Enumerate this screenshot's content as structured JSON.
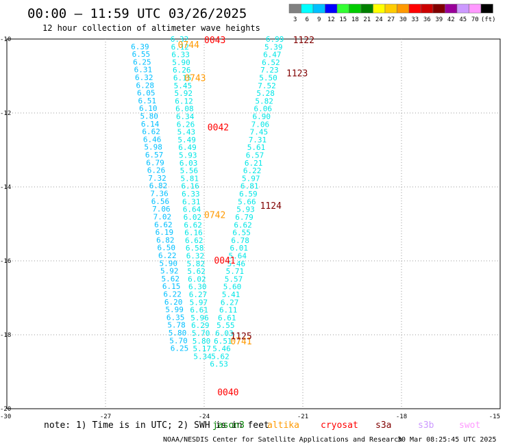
{
  "header": {
    "title": "00:00 – 11:59 UTC 03/26/2025",
    "subtitle": "12 hour collection of altimeter wave heights"
  },
  "legend": {
    "labels": [
      "3",
      "6",
      "9",
      "12",
      "15",
      "18",
      "21",
      "24",
      "27",
      "30",
      "33",
      "36",
      "39",
      "42",
      "45",
      "70",
      "(ft)"
    ],
    "colors": [
      "#808080",
      "#00ffff",
      "#00bfff",
      "#0000ff",
      "#33ff33",
      "#00cc00",
      "#008000",
      "#ffff00",
      "#ffcc00",
      "#ff9900",
      "#ff0000",
      "#cc0000",
      "#800000",
      "#990099",
      "#cc99ff",
      "#ff99ff",
      "#000000"
    ]
  },
  "axes": {
    "y_labels": [
      "-10",
      "-12",
      "-14",
      "-16",
      "-18",
      "-20"
    ],
    "y_values": [
      -10,
      -12,
      -14,
      -16,
      -18,
      -20
    ],
    "x_labels": [
      "-30",
      "-27",
      "-24",
      "-21",
      "-18",
      "-15"
    ],
    "x_values": [
      -30,
      -27,
      -24,
      -21,
      -18,
      -15
    ]
  },
  "note": {
    "text": "note:  1) Time is in UTC; 2) SWH is in feet",
    "sats": [
      {
        "name": "jason3",
        "color": "#008000"
      },
      {
        "name": "altika",
        "color": "#ff9900"
      },
      {
        "name": "cryosat",
        "color": "#ff0000"
      },
      {
        "name": "s3a",
        "color": "#800000"
      },
      {
        "name": "s3b",
        "color": "#cc99ff"
      },
      {
        "name": "swot",
        "color": "#ff99ff"
      }
    ]
  },
  "footer": {
    "credit": "NOAA/NESDIS Center for Satellite Applications and Research",
    "timestamp": "30 Mar 08:25:45 UTC 2025"
  },
  "colors": {
    "cyan": "#00e6e6",
    "blue": "#00bfff",
    "green": "#008000",
    "orange": "#ff9900",
    "red": "#ff0000",
    "maroon": "#800000"
  },
  "track_labels": [
    {
      "text": "0043",
      "lat": -10.02,
      "lon": -24.0,
      "color": "red"
    },
    {
      "text": "0744",
      "lat": -10.15,
      "lon": -24.8,
      "color": "orange"
    },
    {
      "text": "0743",
      "lat": -11.05,
      "lon": -24.6,
      "color": "orange"
    },
    {
      "text": "0042",
      "lat": -12.38,
      "lon": -23.9,
      "color": "red"
    },
    {
      "text": "0742",
      "lat": -14.75,
      "lon": -24.0,
      "color": "orange"
    },
    {
      "text": "0041",
      "lat": -15.98,
      "lon": -23.7,
      "color": "red"
    },
    {
      "text": "0741",
      "lat": -18.17,
      "lon": -23.2,
      "color": "orange"
    },
    {
      "text": "0040",
      "lat": -19.55,
      "lon": -23.6,
      "color": "red"
    },
    {
      "text": "1122",
      "lat": -10.02,
      "lon": -21.3,
      "color": "maroon"
    },
    {
      "text": "1123",
      "lat": -10.92,
      "lon": -21.5,
      "color": "maroon"
    },
    {
      "text": "1124",
      "lat": -14.5,
      "lon": -22.3,
      "color": "maroon"
    },
    {
      "text": "1125",
      "lat": -18.03,
      "lon": -23.2,
      "color": "maroon"
    }
  ],
  "track_a": {
    "color": "blue",
    "lat_start": -10.2,
    "lat_step": 0.2093,
    "lon_start": -25.95,
    "lon_end": -24.75,
    "values": [
      "6.39",
      "6.55",
      "6.25",
      "6.31",
      "6.32",
      "6.28",
      "6.05",
      "6.51",
      "6.10",
      "5.80",
      "6.14",
      "6.62",
      "6.46",
      "5.98",
      "6.57",
      "6.79",
      "6.26",
      "7.32",
      "6.82",
      "7.36",
      "6.56",
      "7.06",
      "7.02",
      "6.62",
      "6.19",
      "6.82",
      "6.50",
      "6.22",
      "5.90",
      "5.92",
      "5.62",
      "6.15",
      "6.22",
      "6.20",
      "5.99",
      "6.35",
      "5.78",
      "5.80",
      "5.70",
      "6.25"
    ]
  },
  "track_b": {
    "color": "cyan",
    "lat_start": -10.0,
    "lat_step": 0.2093,
    "lon_start": -24.75,
    "lon_end": -24.05,
    "values": [
      "6.32",
      "6.12",
      "6.33",
      "5.90",
      "6.26",
      "6.15",
      "5.45",
      "5.92",
      "6.12",
      "6.08",
      "6.34",
      "6.26",
      "5.43",
      "5.49",
      "6.49",
      "5.93",
      "6.03",
      "5.56",
      "5.81",
      "6.16",
      "6.33",
      "6.31",
      "6.64",
      "6.02",
      "6.62",
      "6.16",
      "6.62",
      "6.58",
      "6.32",
      "5.82",
      "5.62",
      "6.02",
      "6.30",
      "6.27",
      "5.97",
      "6.61",
      "5.96",
      "6.29",
      "5.70",
      "5.80",
      "5.17",
      "5.34"
    ]
  },
  "track_c": {
    "color": "cyan",
    "lat_start": -10.0,
    "lat_step": 0.2093,
    "lon_start": -21.85,
    "lon_end": -23.55,
    "values": [
      "6.99",
      "5.39",
      "6.47",
      "6.52",
      "7.23",
      "5.50",
      "7.52",
      "5.28",
      "5.82",
      "6.06",
      "6.90",
      "7.06",
      "7.45",
      "7.31",
      "5.61",
      "6.57",
      "6.21",
      "6.22",
      "5.97",
      "6.81",
      "6.59",
      "5.66",
      "5.93",
      "6.79",
      "6.62",
      "6.55",
      "6.78",
      "6.01",
      "5.64",
      "5.46",
      "5.71",
      "5.57",
      "5.60",
      "5.41",
      "6.27",
      "6.11",
      "6.61",
      "5.55",
      "6.03",
      "6.51",
      "5.46",
      "5.62",
      "6.53"
    ]
  }
}
